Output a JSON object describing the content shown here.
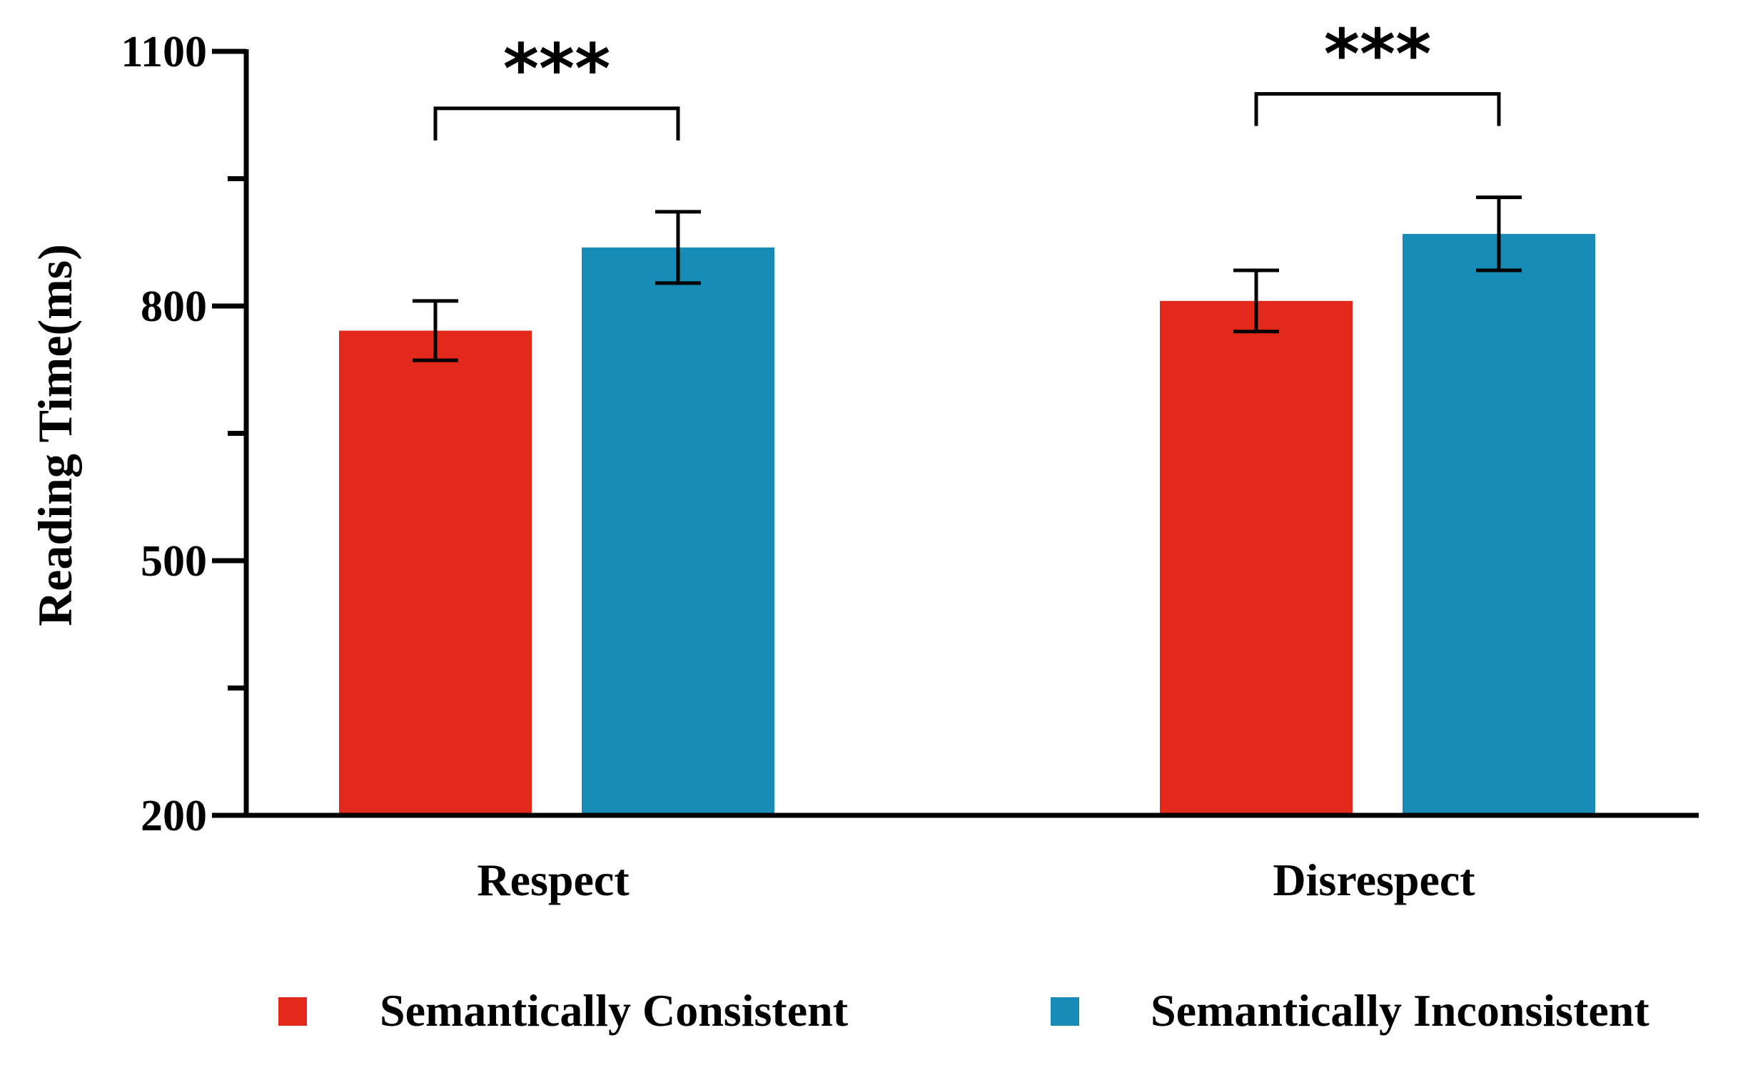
{
  "chart_data": {
    "type": "bar",
    "title": "",
    "xlabel": "",
    "ylabel": "Reading Time(ms)",
    "ylim": [
      200,
      1100
    ],
    "yticks_major": [
      200,
      500,
      800,
      1100
    ],
    "yticks_minor": [
      350,
      650,
      950
    ],
    "grid": false,
    "legend_position": "bottom",
    "categories": [
      "Respect",
      "Disrespect"
    ],
    "series": [
      {
        "name": "Semantically Consistent",
        "color": "#e3281c",
        "values": [
          771,
          806
        ],
        "errors": [
          35,
          36
        ]
      },
      {
        "name": "Semantically Inconsistent",
        "color": "#188bb7",
        "values": [
          869,
          885
        ],
        "errors": [
          42,
          43
        ]
      }
    ],
    "annotations": [
      {
        "category": "Respect",
        "text": "***"
      },
      {
        "category": "Disrespect",
        "text": "***"
      }
    ]
  }
}
